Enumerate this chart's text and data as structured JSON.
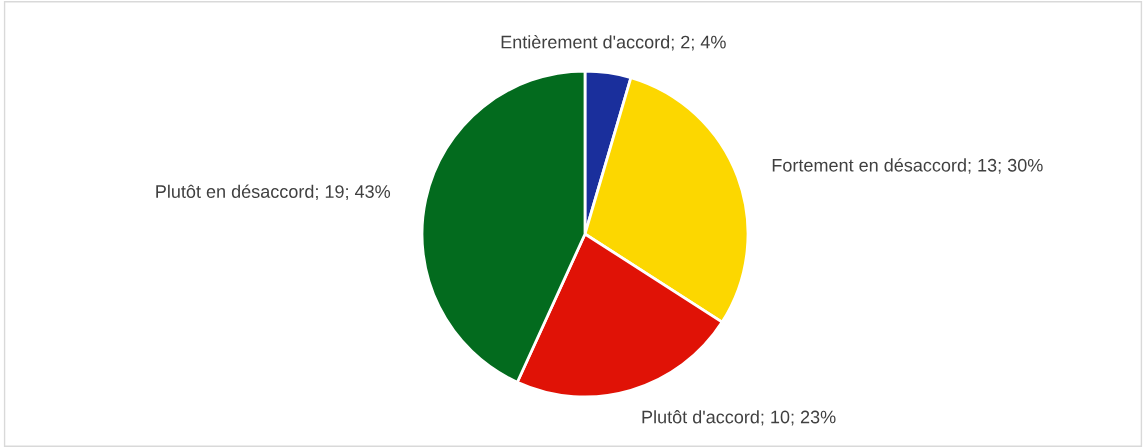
{
  "chart_data": {
    "type": "pie",
    "categories": [
      "Entièrement d'accord",
      "Fortement en désaccord",
      "Plutôt d'accord",
      "Plutôt en désaccord"
    ],
    "values": [
      2,
      13,
      10,
      19
    ],
    "value_labels": [
      "2; 4%",
      "13; 30%",
      "10; 23%",
      "19; 43%"
    ],
    "colors": [
      "#1a2f9c",
      "#fcd700",
      "#e01206",
      "#036b1e"
    ],
    "legend": false
  }
}
